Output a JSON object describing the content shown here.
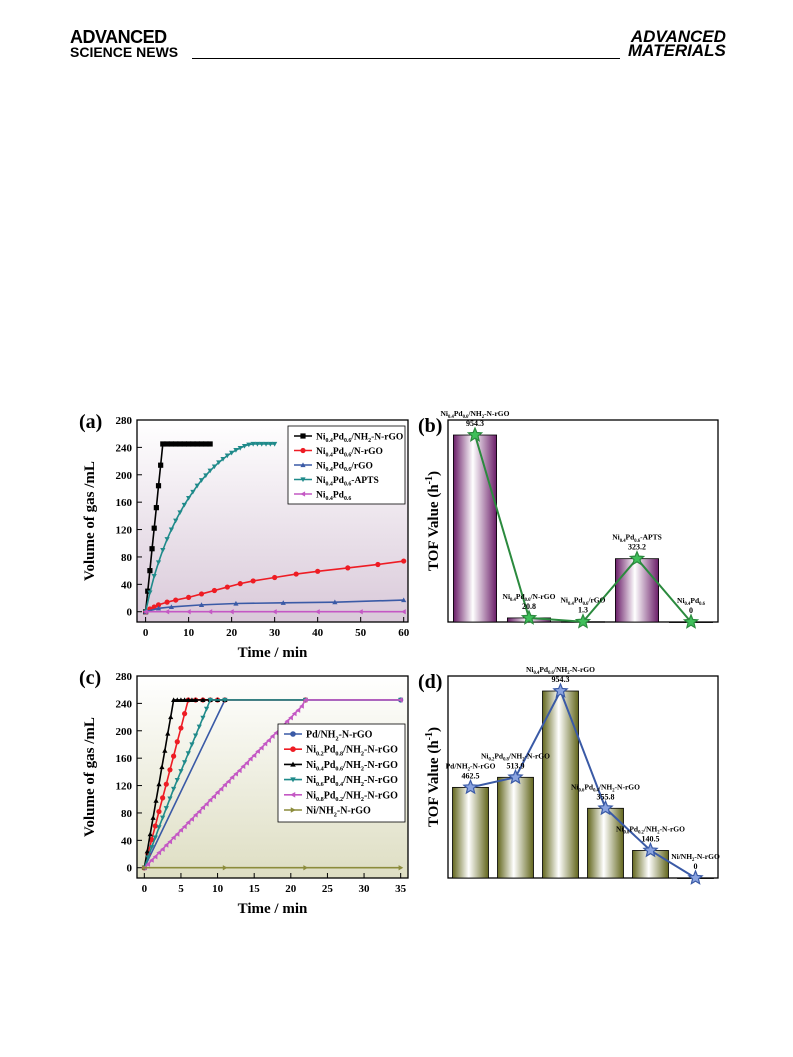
{
  "header": {
    "left_line1": "ADVANCED",
    "left_line2": "SCIENCE NEWS",
    "right_line1": "ADVANCED",
    "right_line2": "MATERIALS"
  },
  "chart_data": [
    {
      "panel": "(a)",
      "type": "line",
      "xlabel": "Time / min",
      "ylabel": "Volume of gas /mL",
      "xlim": [
        -2,
        61
      ],
      "ylim": [
        -15,
        280
      ],
      "xticks": [
        0,
        10,
        20,
        30,
        40,
        50,
        60
      ],
      "yticks": [
        0,
        40,
        80,
        120,
        160,
        200,
        240,
        280
      ],
      "legend_position": "top-right",
      "series": [
        {
          "name": "Ni0.4Pd0.6/NH2-N-rGO",
          "label": {
            "main": "Ni",
            "subs": [
              [
                "0.4",
                "Pd"
              ],
              [
                "0.6",
                "/NH"
              ],
              [
                "2",
                "-N-rGO"
              ]
            ]
          },
          "color": "#000000",
          "marker": "square",
          "x": [
            0,
            0.5,
            1,
            1.5,
            2,
            2.5,
            3,
            3.5,
            4,
            5,
            6,
            7,
            8,
            9,
            10,
            11,
            12,
            13,
            14,
            15
          ],
          "y": [
            0,
            30,
            60,
            92,
            122,
            152,
            184,
            214,
            245,
            245,
            245,
            245,
            245,
            245,
            245,
            245,
            245,
            245,
            245,
            245
          ]
        },
        {
          "name": "Ni0.4Pd0.6/N-rGO",
          "label": {
            "main": "Ni",
            "subs": [
              [
                "0.4",
                "Pd"
              ],
              [
                "0.6",
                "/N-rGO"
              ]
            ]
          },
          "color": "#ee1c24",
          "marker": "circle",
          "x": [
            0,
            1,
            2,
            3,
            5,
            7,
            10,
            13,
            16,
            19,
            22,
            25,
            30,
            35,
            40,
            47,
            54,
            60
          ],
          "y": [
            0,
            4,
            7,
            10,
            14,
            17,
            21,
            26,
            31,
            36,
            41,
            45,
            50,
            55,
            59,
            64,
            69,
            74
          ]
        },
        {
          "name": "Ni0.4Pd0.6/rGO",
          "label": {
            "main": "Ni",
            "subs": [
              [
                "0.4",
                "Pd"
              ],
              [
                "0.6",
                "/rGO"
              ]
            ]
          },
          "color": "#3a5aa6",
          "marker": "triangle-up",
          "x": [
            0,
            3,
            6,
            13,
            21,
            32,
            44,
            60
          ],
          "y": [
            0,
            5,
            7,
            10,
            12,
            13,
            14,
            17
          ]
        },
        {
          "name": "Ni0.4Pd0.6-APTS",
          "label": {
            "main": "Ni",
            "subs": [
              [
                "0.4",
                "Pd"
              ],
              [
                "0.6",
                "-APTS"
              ]
            ]
          },
          "color": "#1f8a8a",
          "marker": "triangle-down",
          "x": [
            0,
            1,
            2,
            3,
            4,
            5,
            6,
            7,
            8,
            9,
            10,
            11,
            12,
            13,
            14,
            15,
            16,
            17,
            18,
            19,
            20,
            21,
            22,
            23,
            24,
            25,
            26,
            27,
            28,
            29,
            30
          ],
          "y": [
            0,
            28,
            52,
            72,
            90,
            106,
            120,
            133,
            145,
            156,
            166,
            175,
            184,
            192,
            199,
            206,
            212,
            218,
            223,
            228,
            232,
            236,
            239,
            242,
            244,
            245,
            245,
            245,
            245,
            245,
            245
          ]
        },
        {
          "name": "Ni0.4Pd0.6",
          "label": {
            "main": "Ni",
            "subs": [
              [
                "0.4",
                "Pd"
              ],
              [
                "0.6",
                ""
              ]
            ]
          },
          "color": "#c458c4",
          "marker": "triangle-left",
          "x": [
            0,
            5,
            10,
            15,
            20,
            30,
            40,
            50,
            60
          ],
          "y": [
            0,
            0,
            0,
            0,
            0,
            0,
            0,
            0,
            0
          ]
        }
      ]
    },
    {
      "panel": "(b)",
      "type": "bar",
      "ylabel": "TOF Value (h⁻¹)",
      "ymax": 1000,
      "color": "#7a2a78",
      "line_color": "#2b8a3e",
      "categories": [
        {
          "label": "Ni0.4Pd0.6/NH2-N-rGO",
          "rich": {
            "main": "Ni",
            "subs": [
              [
                "0.4",
                "Pd"
              ],
              [
                "0.6",
                "/NH"
              ],
              [
                "2",
                "-N-rGO"
              ]
            ]
          },
          "value_label": "954.3",
          "value": 954.3
        },
        {
          "label": "Ni0.4Pd0.6/N-rGO",
          "rich": {
            "main": "Ni",
            "subs": [
              [
                "0.4",
                "Pd"
              ],
              [
                "0.6",
                "/N-rGO"
              ]
            ]
          },
          "value_label": "20.8",
          "value": 20.8
        },
        {
          "label": "Ni0.4Pd0.6/rGO",
          "rich": {
            "main": "Ni",
            "subs": [
              [
                "0.4",
                "Pd"
              ],
              [
                "0.6",
                "/rGO"
              ]
            ]
          },
          "value_label": "1.3",
          "value": 1.3
        },
        {
          "label": "Ni0.4Pd0.6-APTS",
          "rich": {
            "main": "Ni",
            "subs": [
              [
                "0.4",
                "Pd"
              ],
              [
                "0.6",
                "-APTS"
              ]
            ]
          },
          "value_label": "323.2",
          "value": 323.2
        },
        {
          "label": "Ni0.4Pd0.6",
          "rich": {
            "main": "Ni",
            "subs": [
              [
                "0.4",
                "Pd"
              ],
              [
                "0.6",
                ""
              ]
            ]
          },
          "value_label": "0",
          "value": 0
        }
      ]
    },
    {
      "panel": "(c)",
      "type": "line",
      "xlabel": "Time / min",
      "ylabel": "Volume of gas /mL",
      "xlim": [
        -1,
        36
      ],
      "ylim": [
        -15,
        280
      ],
      "xticks": [
        0,
        5,
        10,
        15,
        20,
        25,
        30,
        35
      ],
      "yticks": [
        0,
        40,
        80,
        120,
        160,
        200,
        240,
        280
      ],
      "legend_position": "center-right",
      "series": [
        {
          "name": "Pd/NH2-N-rGO",
          "label": {
            "main": "Pd/NH",
            "subs": [
              [
                "2",
                "-N-rGO"
              ]
            ]
          },
          "color": "#3a5aa6",
          "marker": "circle",
          "x": [
            0,
            11,
            22,
            35
          ],
          "y": [
            0,
            245,
            245,
            245
          ]
        },
        {
          "name": "Ni0.2Pd0.8/NH2-N-rGO",
          "label": {
            "main": "Ni",
            "subs": [
              [
                "0.2",
                "Pd"
              ],
              [
                "0.8",
                "/NH"
              ],
              [
                "2",
                "-N-rGO"
              ]
            ]
          },
          "color": "#ee1c24",
          "marker": "circle",
          "x": [
            0,
            0.5,
            1,
            1.5,
            2,
            2.5,
            3,
            3.5,
            4,
            4.5,
            5,
            5.5,
            6,
            7,
            8,
            9,
            10,
            11,
            22
          ],
          "y": [
            0,
            20,
            41,
            61,
            82,
            102,
            122,
            143,
            163,
            184,
            204,
            225,
            245,
            245,
            245,
            245,
            245,
            245,
            245
          ]
        },
        {
          "name": "Ni0.4Pd0.6/NH2-N-rGO",
          "label": {
            "main": "Ni",
            "subs": [
              [
                "0.4",
                "Pd"
              ],
              [
                "0.6",
                "/NH"
              ],
              [
                "2",
                "-N-rGO"
              ]
            ]
          },
          "color": "#000000",
          "marker": "triangle-up",
          "x": [
            0,
            0.4,
            0.8,
            1.2,
            1.6,
            2,
            2.4,
            2.8,
            3.2,
            3.6,
            4,
            4.5,
            5,
            5.5,
            6,
            6.5,
            7,
            8,
            9,
            10,
            11
          ],
          "y": [
            0,
            24,
            49,
            73,
            98,
            122,
            147,
            171,
            196,
            220,
            245,
            245,
            245,
            245,
            245,
            245,
            245,
            245,
            245,
            245,
            245
          ]
        },
        {
          "name": "Ni0.6Pd0.4/NH2-N-rGO",
          "label": {
            "main": "Ni",
            "subs": [
              [
                "0.6",
                "Pd"
              ],
              [
                "0.4",
                "/NH"
              ],
              [
                "2",
                "-N-rGO"
              ]
            ]
          },
          "color": "#1f8a8a",
          "marker": "triangle-down",
          "x": [
            0,
            0.5,
            1,
            1.5,
            2,
            2.5,
            3,
            3.5,
            4,
            4.5,
            5,
            5.5,
            6,
            6.5,
            7,
            7.5,
            8,
            8.5,
            9,
            11,
            22,
            35
          ],
          "y": [
            0,
            15,
            30,
            44,
            59,
            73,
            87,
            101,
            115,
            128,
            141,
            154,
            167,
            180,
            193,
            206,
            219,
            232,
            245,
            245,
            245,
            245
          ]
        },
        {
          "name": "Ni0.8Pd0.2/NH2-N-rGO",
          "label": {
            "main": "Ni",
            "subs": [
              [
                "0.8",
                "Pd"
              ],
              [
                "0.2",
                "/NH"
              ],
              [
                "2",
                "-N-rGO"
              ]
            ]
          },
          "color": "#c458c4",
          "marker": "triangle-left",
          "x": [
            0,
            0.5,
            1,
            1.5,
            2,
            2.5,
            3,
            3.5,
            4,
            4.5,
            5,
            5.5,
            6,
            6.5,
            7,
            7.5,
            8,
            8.5,
            9,
            9.5,
            10,
            10.5,
            11,
            11.5,
            12,
            12.5,
            13,
            13.5,
            14,
            14.5,
            15,
            15.5,
            16,
            16.5,
            17,
            17.5,
            18,
            18.5,
            19,
            19.5,
            20,
            20.5,
            21,
            21.5,
            22,
            35
          ],
          "y": [
            0,
            5,
            11,
            16,
            22,
            27,
            33,
            38,
            44,
            49,
            55,
            60,
            66,
            71,
            77,
            82,
            88,
            93,
            99,
            104,
            110,
            115,
            121,
            126,
            132,
            137,
            142,
            148,
            153,
            159,
            164,
            170,
            175,
            181,
            186,
            192,
            197,
            203,
            208,
            214,
            219,
            225,
            230,
            236,
            245,
            245
          ]
        },
        {
          "name": "Ni/NH2-N-rGO",
          "label": {
            "main": "Ni/NH",
            "subs": [
              [
                "2",
                "-N-rGO"
              ]
            ]
          },
          "color": "#8c8c3c",
          "marker": "triangle-right",
          "x": [
            0,
            11,
            22,
            35
          ],
          "y": [
            0,
            0,
            0,
            0
          ]
        }
      ]
    },
    {
      "panel": "(d)",
      "type": "bar",
      "ylabel": "TOF Value (h⁻¹)",
      "ymax": 1000,
      "color": "#6b7020",
      "line_color": "#3a5aa6",
      "categories": [
        {
          "label": "Pd/NH2-N-rGO",
          "rich": {
            "main": "Pd/NH",
            "subs": [
              [
                "2",
                "-N-rGO"
              ]
            ]
          },
          "value_label": "462.5",
          "value": 462.5
        },
        {
          "label": "Ni0.2Pd0.8/NH2-N-rGO",
          "rich": {
            "main": "Ni",
            "subs": [
              [
                "0.2",
                "Pd"
              ],
              [
                "0.8",
                "/NH"
              ],
              [
                "2",
                "-N-rGO"
              ]
            ]
          },
          "value_label": "513.9",
          "value": 513.9
        },
        {
          "label": "Ni0.4Pd0.6/NH2-N-rGO",
          "rich": {
            "main": "Ni",
            "subs": [
              [
                "0.4",
                "Pd"
              ],
              [
                "0.6",
                "/NH"
              ],
              [
                "2",
                "-N-rGO"
              ]
            ]
          },
          "value_label": "954.3",
          "value": 954.3
        },
        {
          "label": "Ni0.6Pd0.4/NH2-N-rGO",
          "rich": {
            "main": "Ni",
            "subs": [
              [
                "0.6",
                "Pd"
              ],
              [
                "0.4",
                "/NH"
              ],
              [
                "2",
                "-N-rGO"
              ]
            ]
          },
          "value_label": "355.8",
          "value": 355.8
        },
        {
          "label": "Ni0.8Pd0.2/NH2-N-rGO",
          "rich": {
            "main": "Ni",
            "subs": [
              [
                "0.8",
                "Pd"
              ],
              [
                "0.2",
                "/NH"
              ],
              [
                "2",
                "-N-rGO"
              ]
            ]
          },
          "value_label": "140.5",
          "value": 140.5
        },
        {
          "label": "Ni/NH2-N-rGO",
          "rich": {
            "main": "Ni/NH",
            "subs": [
              [
                "2",
                "-N-rGO"
              ]
            ]
          },
          "value_label": "0",
          "value": 0
        }
      ]
    }
  ]
}
